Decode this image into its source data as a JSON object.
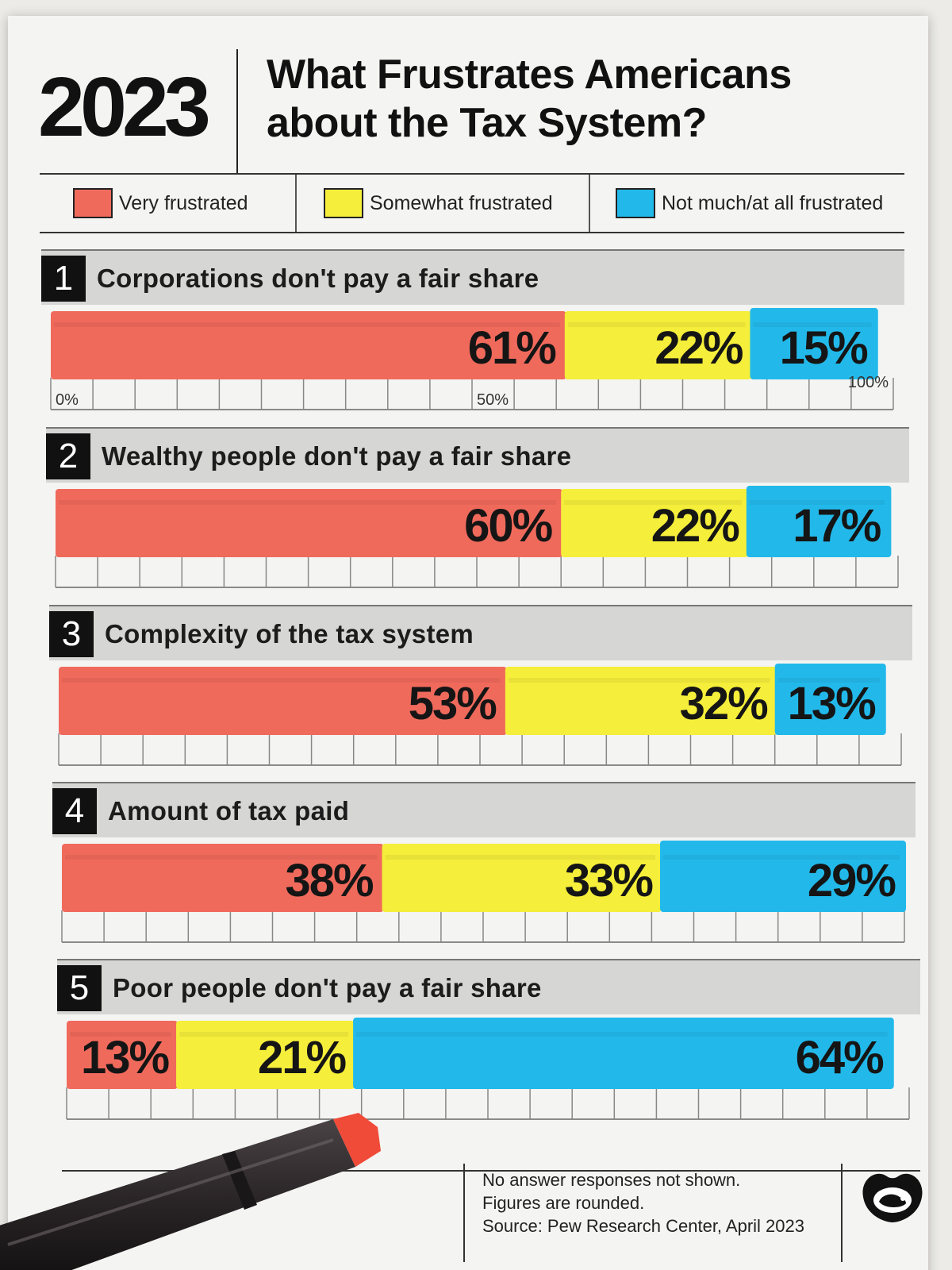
{
  "header": {
    "year": "2023",
    "title_line1": "What Frustrates Americans",
    "title_line2": "about the Tax System?"
  },
  "legend": [
    {
      "label": "Very frustrated",
      "color": "#f06a5c"
    },
    {
      "label": "Somewhat frustrated",
      "color": "#f5ee3a"
    },
    {
      "label": "Not much/at all frustrated",
      "color": "#22b9ea"
    }
  ],
  "chart_data": {
    "type": "bar",
    "orientation": "horizontal-stacked",
    "title": "What Frustrates Americans about the Tax System?",
    "axis": {
      "min": 0,
      "max": 100,
      "tick_labels": [
        "0%",
        "50%",
        "100%"
      ],
      "grid": true
    },
    "series_names": [
      "Very frustrated",
      "Somewhat frustrated",
      "Not much/at all frustrated"
    ],
    "categories": [
      {
        "number": "1",
        "label": "Corporations don't pay a fair share",
        "values": [
          61,
          22,
          15
        ],
        "value_labels": [
          "61%",
          "22%",
          "15%"
        ]
      },
      {
        "number": "2",
        "label": "Wealthy people don't pay a fair share",
        "values": [
          60,
          22,
          17
        ],
        "value_labels": [
          "60%",
          "22%",
          "17%"
        ]
      },
      {
        "number": "3",
        "label": "Complexity of the tax system",
        "values": [
          53,
          32,
          13
        ],
        "value_labels": [
          "53%",
          "32%",
          "13%"
        ]
      },
      {
        "number": "4",
        "label": "Amount of tax paid",
        "values": [
          38,
          33,
          29
        ],
        "value_labels": [
          "38%",
          "33%",
          "29%"
        ]
      },
      {
        "number": "5",
        "label": "Poor people don't pay a fair share",
        "values": [
          13,
          21,
          64
        ],
        "value_labels": [
          "13%",
          "21%",
          "64%"
        ]
      }
    ]
  },
  "footer": {
    "note_line1": "No answer responses not shown.",
    "note_line2": "Figures are rounded.",
    "source": "Source: Pew Research Center, April 2023"
  },
  "icons": {
    "logo": "visual-capitalist-logo-icon",
    "marker": "marker-pen-icon"
  }
}
